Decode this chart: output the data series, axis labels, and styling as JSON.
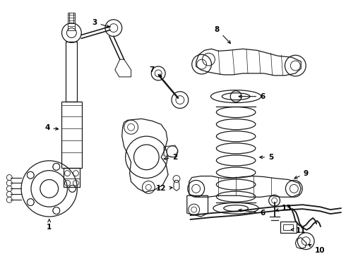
{
  "bg_color": "#ffffff",
  "line_color": "#1a1a1a",
  "lw": 0.9,
  "fig_width": 4.9,
  "fig_height": 3.6,
  "dpi": 100
}
